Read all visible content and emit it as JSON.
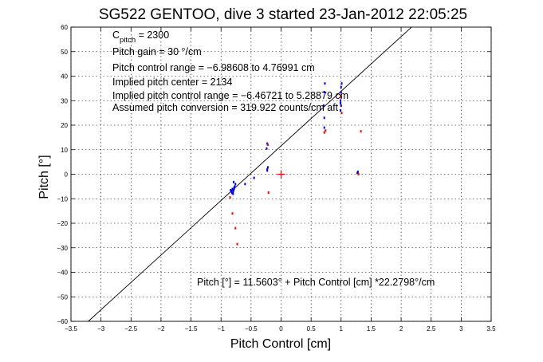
{
  "chart_data": {
    "type": "scatter",
    "title": "SG522 GENTOO, dive 3 started 23-Jan-2012 22:05:25",
    "xlabel": "Pitch Control [cm]",
    "ylabel": "Pitch [°]",
    "xlim": [
      -3.5,
      3.5
    ],
    "ylim": [
      -60,
      60
    ],
    "xticks": [
      -3.5,
      -3,
      -2.5,
      -2,
      -1.5,
      -1,
      -0.5,
      0,
      0.5,
      1,
      1.5,
      2,
      2.5,
      3,
      3.5
    ],
    "xtick_labels": [
      "−3.5",
      "−3",
      "−2.5",
      "−2",
      "−1.5",
      "−1",
      "−0.5",
      "0",
      "0.5",
      "1",
      "1.5",
      "2",
      "2.5",
      "3",
      "3.5"
    ],
    "yticks": [
      -60,
      -50,
      -40,
      -30,
      -20,
      -10,
      0,
      10,
      20,
      30,
      40,
      50,
      60
    ],
    "ytick_labels": [
      "−60",
      "−50",
      "−40",
      "−30",
      "−20",
      "−10",
      "0",
      "10",
      "20",
      "30",
      "40",
      "50",
      "60"
    ],
    "grid": true,
    "annotations": {
      "cpitch_prefix": "C",
      "cpitch_sub": "pitch",
      "cpitch_suffix": " = 2300",
      "pitch_gain": "Pitch gain = 30 °/cm",
      "control_range": "Pitch control range = −6.98608 to 4.76991 cm",
      "implied_center": "Implied pitch center = 2134",
      "implied_range": "Implied pitch control range = −6.46721 to 5.28879 cm",
      "conversion": "Assumed pitch conversion = 319.922 counts/cm aft",
      "fit_equation": "Pitch [°] = 11.5603° + Pitch Control [cm] *22.2798°/cm"
    },
    "fit_line": {
      "intercept": 11.5603,
      "slope": 22.2798,
      "color": "#000000"
    },
    "center_marker": {
      "x": 0,
      "y": 0,
      "color": "#ff0000"
    },
    "series": [
      {
        "color": "#0000ff",
        "x": [
          -0.84,
          -0.83,
          -0.82,
          -0.81,
          -0.8,
          -0.79,
          -0.78,
          -0.77,
          -0.76,
          -0.8,
          -0.79,
          -0.82,
          -0.78,
          -0.6,
          -0.45,
          -0.23,
          -0.23,
          -0.22,
          -0.24,
          -0.23,
          0.72,
          0.72,
          0.71,
          0.72,
          0.73,
          0.99,
          0.99,
          1.0,
          1.0,
          1.0,
          1.01,
          0.99,
          1.0,
          1.27,
          1.28
        ],
        "y": [
          -6.5,
          -6.8,
          -7.2,
          -6.0,
          -7.5,
          -6.6,
          -5.8,
          -5.0,
          -4.0,
          -8.0,
          -3.2,
          -7.6,
          -5.4,
          -4.0,
          -1.5,
          1.5,
          2.0,
          2.8,
          10.5,
          12.5,
          19.0,
          23.0,
          28.0,
          33.5,
          37.0,
          26.0,
          29.0,
          31.5,
          33.5,
          35.5,
          37.0,
          30.0,
          28.0,
          0.5,
          1.0
        ]
      },
      {
        "color": "#ff0000",
        "x": [
          -0.85,
          -0.81,
          -0.76,
          -0.73,
          -0.22,
          -0.21,
          0.72,
          0.74,
          0.99,
          1.01,
          1.29,
          1.33
        ],
        "y": [
          -9.5,
          -16.0,
          -22.0,
          -28.5,
          12.0,
          -7.5,
          17.0,
          17.8,
          32.0,
          25.0,
          0.0,
          17.5
        ]
      }
    ]
  }
}
